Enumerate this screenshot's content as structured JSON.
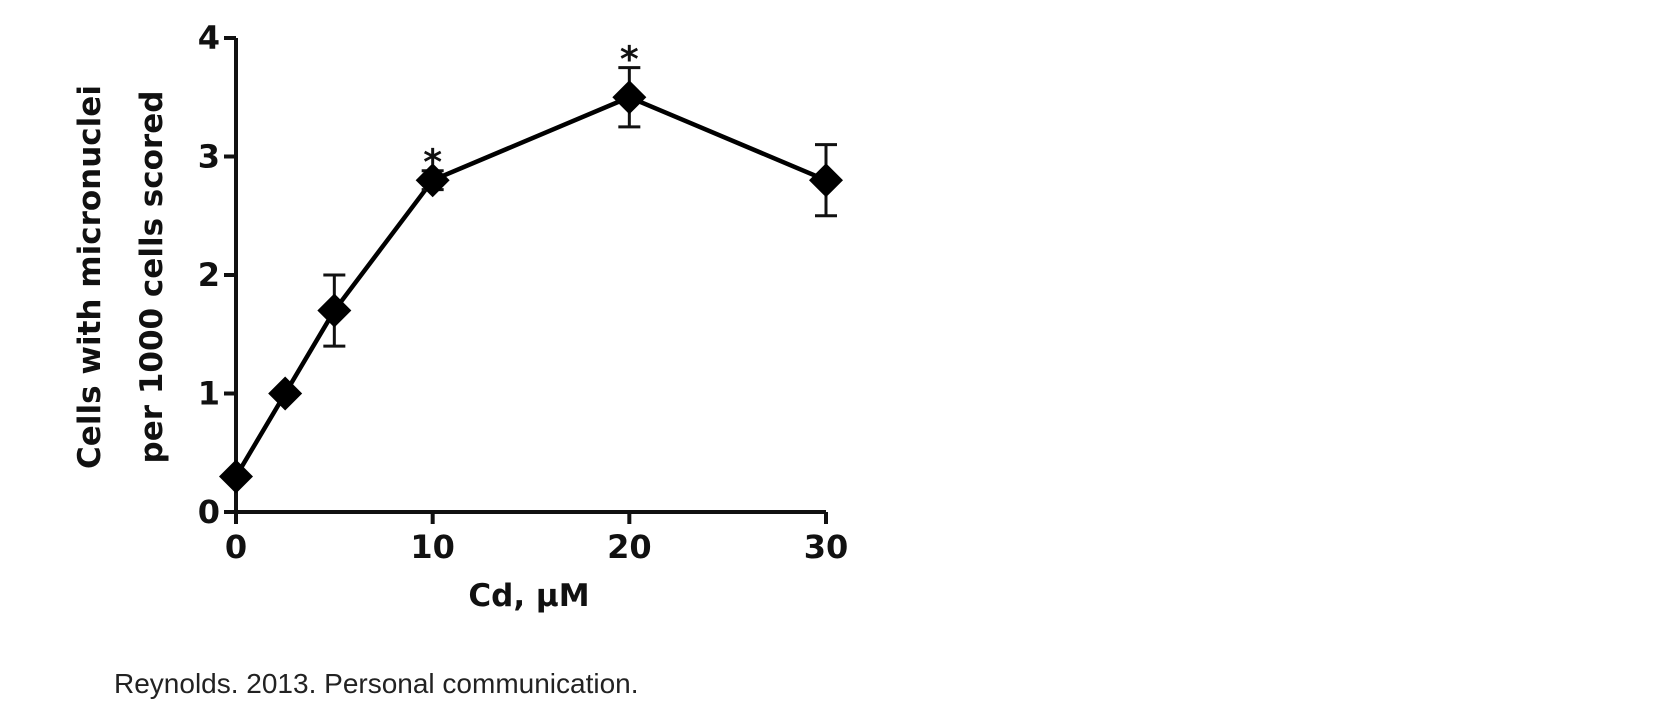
{
  "chart_data": {
    "type": "line",
    "xlabel": "Cd, μM",
    "ylabel_lines": [
      "Cells with micronuclei",
      "per 1000 cells scored"
    ],
    "xlim": [
      0,
      30
    ],
    "ylim": [
      0,
      4
    ],
    "xticks": [
      0,
      10,
      20,
      30
    ],
    "yticks": [
      0,
      1,
      2,
      3,
      4
    ],
    "grid": false,
    "series": [
      {
        "marker": "diamond",
        "color": "#000000",
        "x": [
          0,
          2.5,
          5,
          10,
          20,
          30
        ],
        "y": [
          0.3,
          1.0,
          1.7,
          2.8,
          3.5,
          2.8
        ],
        "err": [
          0.05,
          0.04,
          0.3,
          0.08,
          0.25,
          0.3
        ]
      }
    ],
    "annotations": [
      {
        "x": 10,
        "y": 2.88,
        "text": "*"
      },
      {
        "x": 20,
        "y": 3.75,
        "text": "*"
      }
    ]
  },
  "caption": "Reynolds. 2013. Personal communication."
}
